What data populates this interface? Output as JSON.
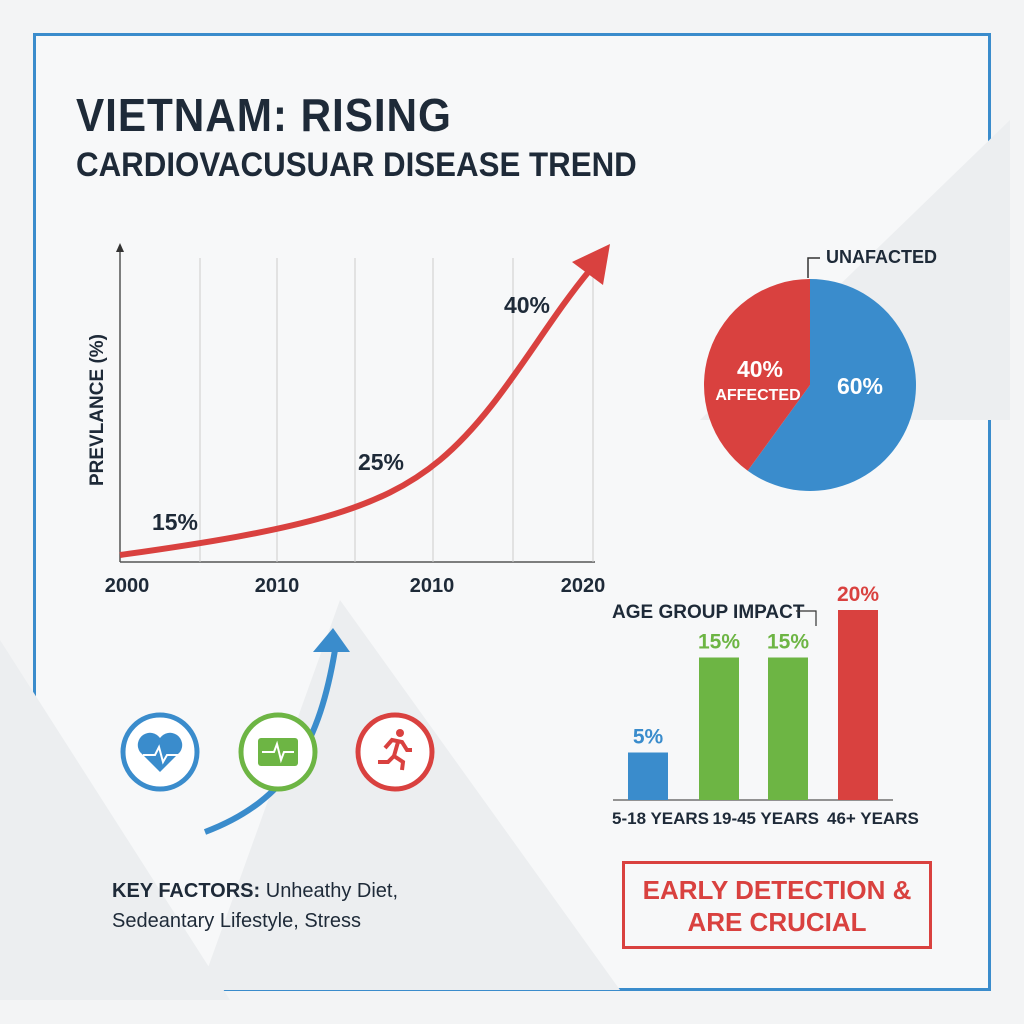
{
  "title": {
    "line1": "VIETNAM: RISING",
    "line2": "CARDIOVACUSUAR DISEASE TREND"
  },
  "colors": {
    "red": "#d9413f",
    "blue": "#3a8ccc",
    "green": "#6db544",
    "text": "#1e2a38"
  },
  "chart_data": [
    {
      "type": "line",
      "ylabel": "PREVLANCE (%)",
      "x_tick_labels": [
        "2000",
        "2010",
        "2010",
        "2020"
      ],
      "points": [
        {
          "label": "15%",
          "value": 15
        },
        {
          "label": "25%",
          "value": 25
        },
        {
          "label": "40%",
          "value": 40
        }
      ]
    },
    {
      "type": "pie",
      "slices": [
        {
          "label": "AFFECTED",
          "value": 40,
          "value_label": "40%",
          "color": "#d9413f"
        },
        {
          "label": "UNAFACTED",
          "value": 60,
          "value_label": "60%",
          "color": "#3a8ccc"
        }
      ]
    },
    {
      "type": "bar",
      "title": "AGE GROUP IMPACT",
      "categories": [
        "5-18 YEARS",
        "",
        "19-45 YEARS",
        "46+ YEARS"
      ],
      "values": [
        5,
        15,
        15,
        20
      ],
      "value_labels": [
        "5%",
        "15%",
        "15%",
        "20%"
      ],
      "colors": [
        "#3a8ccc",
        "#6db544",
        "#6db544",
        "#d9413f"
      ]
    }
  ],
  "icons": [
    "heart-pulse-icon",
    "ecg-monitor-icon",
    "running-person-icon"
  ],
  "key_factors": {
    "label": "KEY FACTORS:",
    "text1": " Unheathy Diet,",
    "text2": "Sedeantary Lifestyle, Stress"
  },
  "cta": {
    "line1": "EARLY DETECTION &",
    "line2": "ARE CRUCIAL"
  }
}
